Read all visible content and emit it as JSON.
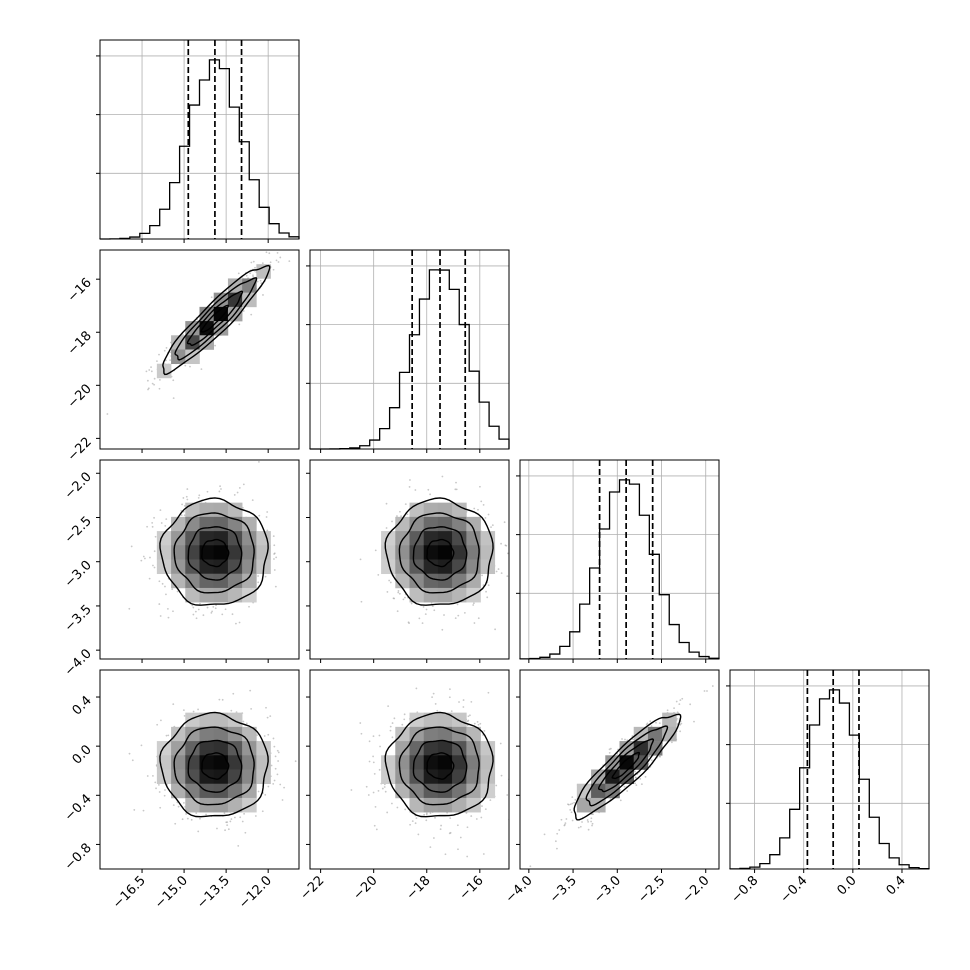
{
  "chart_data": {
    "type": "corner",
    "parameters": [
      {
        "ticks": [
          -16.5,
          -15.0,
          -13.5,
          -12.0
        ],
        "tick_labels": [
          "−16.5",
          "−15.0",
          "−13.5",
          "−12.0"
        ],
        "range": [
          -18.0,
          -10.9
        ],
        "mean": -13.9,
        "std": 0.95,
        "quantiles": [
          -14.85,
          -13.9,
          -12.95
        ]
      },
      {
        "ticks": [
          -22,
          -20,
          -18,
          -16
        ],
        "tick_labels": [
          "−22",
          "−20",
          "−18",
          "−16"
        ],
        "range": [
          -22.4,
          -14.9
        ],
        "mean": -17.5,
        "std": 1.0,
        "quantiles": [
          -18.55,
          -17.5,
          -16.55
        ]
      },
      {
        "ticks": [
          -4.0,
          -3.5,
          -3.0,
          -2.5,
          -2.0
        ],
        "tick_labels": [
          "−4.0",
          "−3.5",
          "−3.0",
          "−2.5",
          "−2.0"
        ],
        "range": [
          -4.1,
          -1.85
        ],
        "mean": -2.9,
        "std": 0.3,
        "quantiles": [
          -3.2,
          -2.9,
          -2.6
        ]
      },
      {
        "ticks": [
          -0.8,
          -0.4,
          0.0,
          0.4
        ],
        "tick_labels": [
          "−0.8",
          "−0.4",
          "0.0",
          "0.4"
        ],
        "range": [
          -1.0,
          0.62
        ],
        "mean": -0.16,
        "std": 0.21,
        "quantiles": [
          -0.37,
          -0.16,
          0.05
        ]
      }
    ],
    "correlations": [
      {
        "pair": [
          0,
          1
        ],
        "rho": 0.93
      },
      {
        "pair": [
          0,
          2
        ],
        "rho": 0.0
      },
      {
        "pair": [
          1,
          2
        ],
        "rho": 0.0
      },
      {
        "pair": [
          0,
          3
        ],
        "rho": 0.0
      },
      {
        "pair": [
          1,
          3
        ],
        "rho": 0.0
      },
      {
        "pair": [
          2,
          3
        ],
        "rho": 0.9
      }
    ],
    "contour_levels_sigma": [
      0.5,
      1.0,
      1.5,
      2.0
    ],
    "grid": true
  }
}
